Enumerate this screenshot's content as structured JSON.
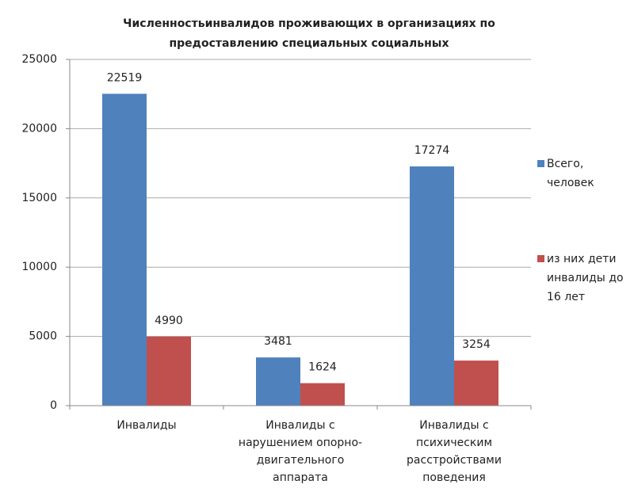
{
  "chart_data": {
    "type": "bar",
    "title": [
      "Численностьинвалидов проживающих в организациях по",
      "предоставлению специальных социальных"
    ],
    "categories": [
      "Инвалиды",
      "Инвалиды с нарушением опорно-двигательного аппарата",
      "Инвалиды с психическим расстройствами поведения"
    ],
    "series": [
      {
        "name": "Всего, человек",
        "color": "#4f81bd",
        "values": [
          22519,
          3481,
          17274
        ]
      },
      {
        "name": "из них дети инвалиды до 16 лет",
        "color": "#c0504d",
        "values": [
          4990,
          1624,
          3254
        ]
      }
    ],
    "ylim": [
      0,
      25000
    ],
    "yticks": [
      0,
      5000,
      10000,
      15000,
      20000,
      25000
    ],
    "grid": true,
    "legend": "right"
  }
}
